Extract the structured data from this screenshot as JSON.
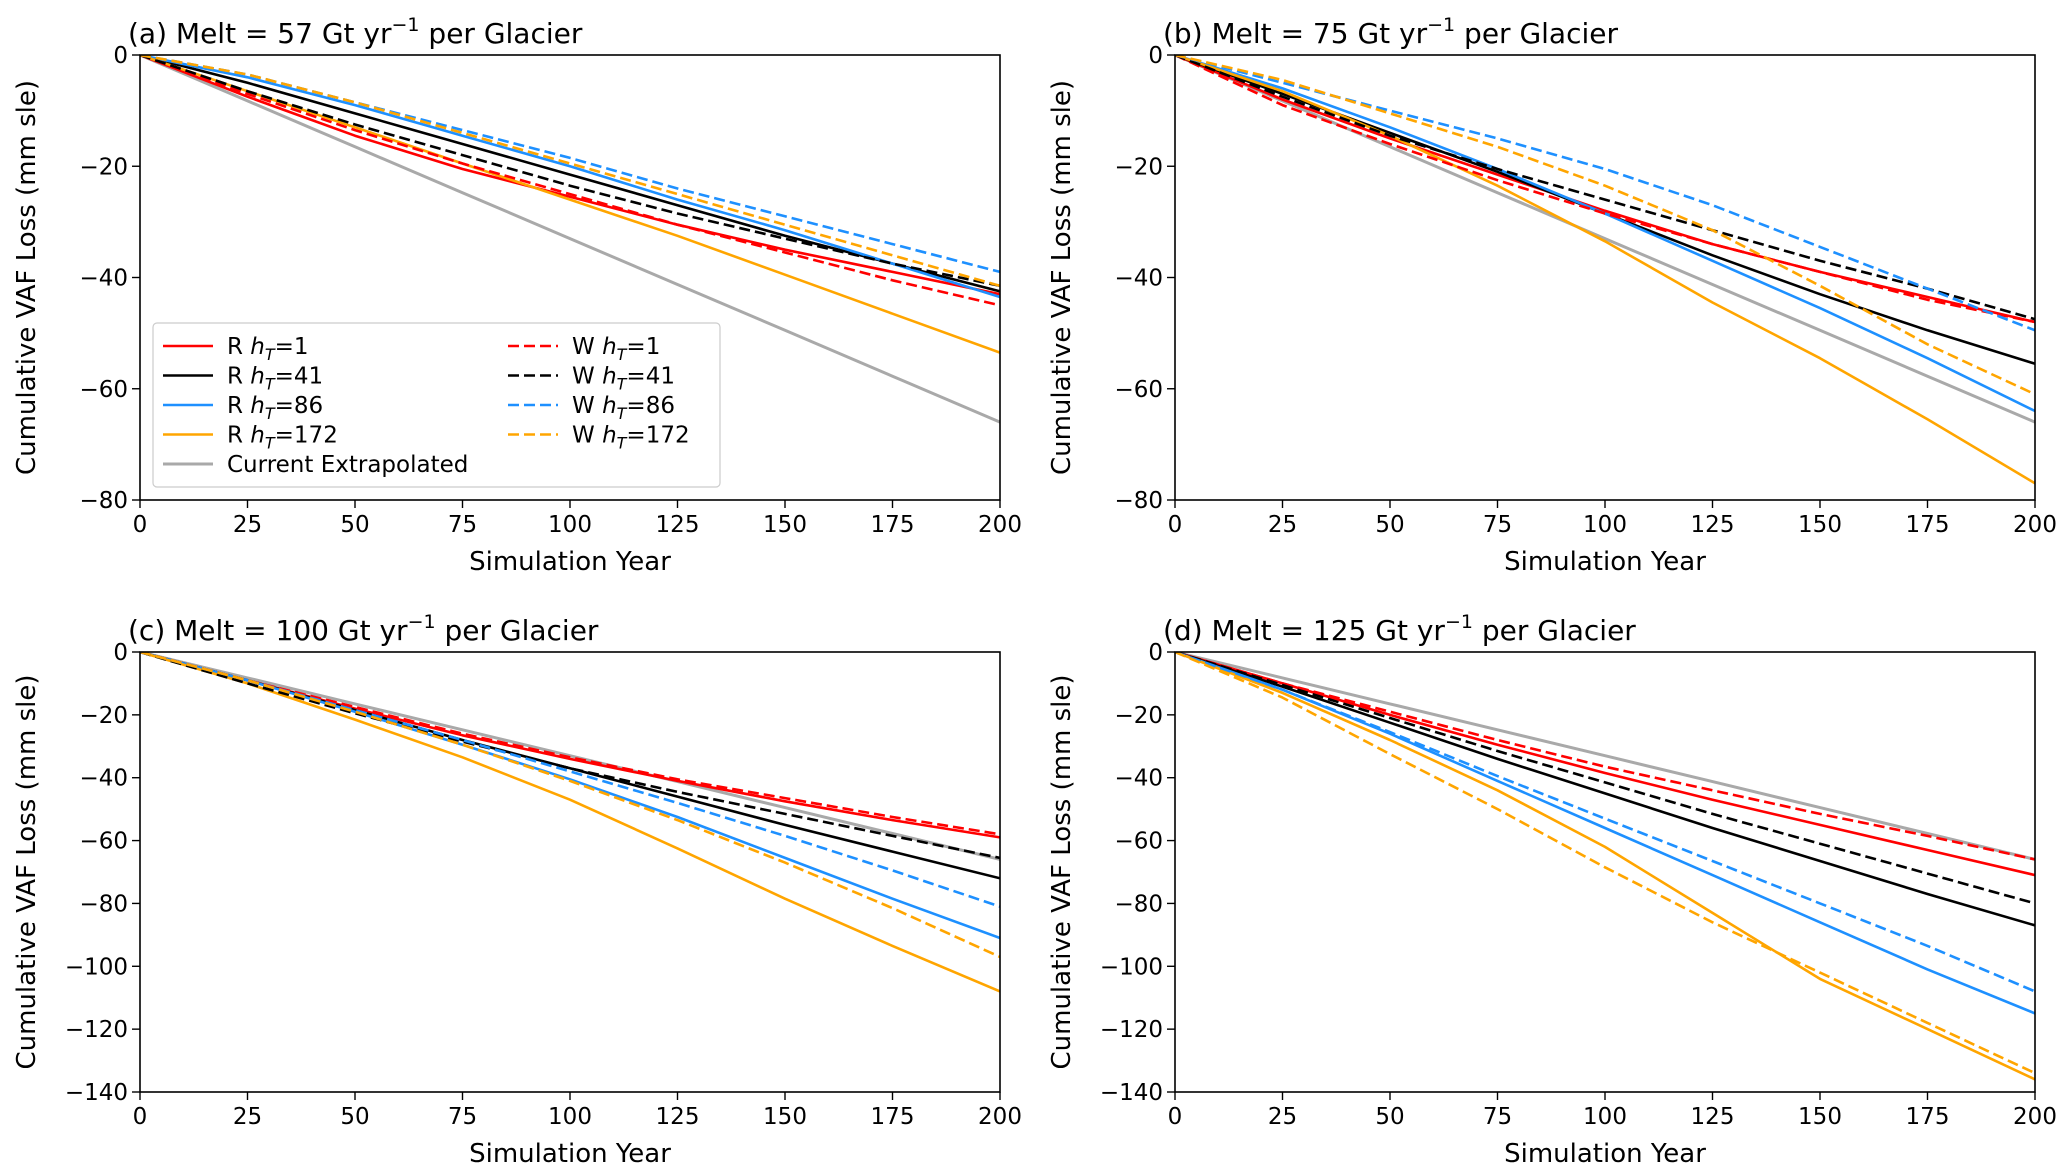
{
  "chart_data": [
    {
      "type": "line",
      "title_prefix": "(a) Melt = 57 Gt yr",
      "title_sup": "−1",
      "title_suffix": " per Glacier",
      "xlabel": "Simulation Year",
      "ylabel": "Cumulative VAF Loss (mm sle)",
      "xlim": [
        0,
        200
      ],
      "ylim": [
        -80,
        0
      ],
      "xticks": [
        0,
        25,
        50,
        75,
        100,
        125,
        150,
        175,
        200
      ],
      "yticks": [
        0,
        -20,
        -40,
        -60,
        -80
      ],
      "x": [
        0,
        25,
        50,
        75,
        100,
        125,
        150,
        175,
        200
      ],
      "legend": true,
      "series": [
        {
          "name": "R h_T=1",
          "color": "#ff0000",
          "dash": "solid",
          "values": [
            0,
            -7.5,
            -14.5,
            -20.5,
            -25.5,
            -30.5,
            -35,
            -39,
            -43
          ]
        },
        {
          "name": "R h_T=41",
          "color": "#000000",
          "dash": "solid",
          "values": [
            0,
            -5,
            -10.5,
            -16,
            -21.5,
            -27,
            -32.5,
            -37.5,
            -42.5
          ]
        },
        {
          "name": "R h_T=86",
          "color": "#1e90ff",
          "dash": "solid",
          "values": [
            0,
            -4,
            -9,
            -14.5,
            -20,
            -26,
            -31.5,
            -37.5,
            -43.5
          ]
        },
        {
          "name": "R h_T=172",
          "color": "#ffa500",
          "dash": "solid",
          "values": [
            0,
            -6.5,
            -13,
            -19.5,
            -26,
            -32.5,
            -39.5,
            -46.5,
            -53.5
          ]
        },
        {
          "name": "W h_T=1",
          "color": "#ff0000",
          "dash": "dashed",
          "values": [
            0,
            -7,
            -13.5,
            -19.5,
            -25,
            -30.5,
            -35.5,
            -40.5,
            -45
          ]
        },
        {
          "name": "W h_T=41",
          "color": "#000000",
          "dash": "dashed",
          "values": [
            0,
            -6.5,
            -12.5,
            -18,
            -23.5,
            -28.5,
            -33,
            -37.5,
            -41.5
          ]
        },
        {
          "name": "W h_T=86",
          "color": "#1e90ff",
          "dash": "dashed",
          "values": [
            0,
            -3.5,
            -8.5,
            -13.5,
            -18.5,
            -24,
            -29,
            -34,
            -39
          ]
        },
        {
          "name": "W h_T=172",
          "color": "#ffa500",
          "dash": "dashed",
          "values": [
            0,
            -3.5,
            -8.5,
            -14,
            -19.5,
            -25,
            -30.5,
            -36,
            -41.5
          ]
        },
        {
          "name": "Current Extrapolated",
          "color": "#a9a9a9",
          "dash": "solid",
          "width": 3,
          "values": [
            0,
            -8.25,
            -16.5,
            -24.75,
            -33,
            -41.25,
            -49.5,
            -57.75,
            -66
          ]
        }
      ]
    },
    {
      "type": "line",
      "title_prefix": "(b) Melt = 75 Gt yr",
      "title_sup": "−1",
      "title_suffix": " per Glacier",
      "xlabel": "Simulation Year",
      "ylabel": "Cumulative VAF Loss (mm sle)",
      "xlim": [
        0,
        200
      ],
      "ylim": [
        -80,
        0
      ],
      "xticks": [
        0,
        25,
        50,
        75,
        100,
        125,
        150,
        175,
        200
      ],
      "yticks": [
        0,
        -20,
        -40,
        -60,
        -80
      ],
      "x": [
        0,
        25,
        50,
        75,
        100,
        125,
        150,
        175,
        200
      ],
      "legend": false,
      "series": [
        {
          "name": "R h_T=1",
          "color": "#ff0000",
          "dash": "solid",
          "values": [
            0,
            -8,
            -15,
            -21.5,
            -28,
            -34,
            -39,
            -43.5,
            -48
          ]
        },
        {
          "name": "R h_T=41",
          "color": "#000000",
          "dash": "solid",
          "values": [
            0,
            -7,
            -14,
            -21,
            -28.5,
            -36,
            -43,
            -49.5,
            -55.5
          ]
        },
        {
          "name": "R h_T=86",
          "color": "#1e90ff",
          "dash": "solid",
          "values": [
            0,
            -6,
            -13,
            -20.5,
            -28.5,
            -37,
            -45.5,
            -54.5,
            -64
          ]
        },
        {
          "name": "R h_T=172",
          "color": "#ffa500",
          "dash": "solid",
          "values": [
            0,
            -6.5,
            -14.5,
            -23.5,
            -33.5,
            -44.5,
            -54.5,
            -65.5,
            -77
          ]
        },
        {
          "name": "W h_T=1",
          "color": "#ff0000",
          "dash": "dashed",
          "values": [
            0,
            -9,
            -16,
            -22.5,
            -28.5,
            -34,
            -39,
            -44,
            -48
          ]
        },
        {
          "name": "W h_T=41",
          "color": "#000000",
          "dash": "dashed",
          "values": [
            0,
            -7.5,
            -14.5,
            -20.5,
            -26,
            -31.5,
            -37,
            -42,
            -47.5
          ]
        },
        {
          "name": "W h_T=86",
          "color": "#1e90ff",
          "dash": "dashed",
          "values": [
            0,
            -5,
            -10,
            -15,
            -20.5,
            -27,
            -34.5,
            -42,
            -49.5
          ]
        },
        {
          "name": "W h_T=172",
          "color": "#ffa500",
          "dash": "dashed",
          "values": [
            0,
            -4.5,
            -10.5,
            -16.5,
            -23.5,
            -31.5,
            -41.5,
            -52,
            -61
          ]
        },
        {
          "name": "Current Extrapolated",
          "color": "#a9a9a9",
          "dash": "solid",
          "width": 3,
          "values": [
            0,
            -8.25,
            -16.5,
            -24.75,
            -33,
            -41.25,
            -49.5,
            -57.75,
            -66
          ]
        }
      ]
    },
    {
      "type": "line",
      "title_prefix": "(c) Melt = 100 Gt yr",
      "title_sup": "−1",
      "title_suffix": " per Glacier",
      "xlabel": "Simulation Year",
      "ylabel": "Cumulative VAF Loss (mm sle)",
      "xlim": [
        0,
        200
      ],
      "ylim": [
        -140,
        0
      ],
      "xticks": [
        0,
        25,
        50,
        75,
        100,
        125,
        150,
        175,
        200
      ],
      "yticks": [
        0,
        -20,
        -40,
        -60,
        -80,
        -100,
        -120,
        -140
      ],
      "x": [
        0,
        25,
        50,
        75,
        100,
        125,
        150,
        175,
        200
      ],
      "legend": false,
      "series": [
        {
          "name": "R h_T=1",
          "color": "#ff0000",
          "dash": "solid",
          "values": [
            0,
            -9,
            -18,
            -26.5,
            -34,
            -41,
            -47.5,
            -53.5,
            -59
          ]
        },
        {
          "name": "R h_T=41",
          "color": "#000000",
          "dash": "solid",
          "values": [
            0,
            -9,
            -18.5,
            -28,
            -37,
            -46,
            -55,
            -63.5,
            -72
          ]
        },
        {
          "name": "R h_T=86",
          "color": "#1e90ff",
          "dash": "solid",
          "values": [
            0,
            -9,
            -19,
            -29.5,
            -40.5,
            -52.5,
            -65.5,
            -78.5,
            -91
          ]
        },
        {
          "name": "R h_T=172",
          "color": "#ffa500",
          "dash": "solid",
          "values": [
            0,
            -10,
            -21.5,
            -33.5,
            -47,
            -62.5,
            -78.5,
            -93.5,
            -108
          ]
        },
        {
          "name": "W h_T=1",
          "color": "#ff0000",
          "dash": "dashed",
          "values": [
            0,
            -9,
            -17.5,
            -26,
            -33.5,
            -40.5,
            -46.5,
            -52.5,
            -58
          ]
        },
        {
          "name": "W h_T=41",
          "color": "#000000",
          "dash": "dashed",
          "values": [
            0,
            -10,
            -19.5,
            -28.5,
            -37,
            -44.5,
            -51.5,
            -58.5,
            -65.5
          ]
        },
        {
          "name": "W h_T=86",
          "color": "#1e90ff",
          "dash": "dashed",
          "values": [
            0,
            -9,
            -18.5,
            -28,
            -38,
            -48,
            -58.5,
            -69.5,
            -81
          ]
        },
        {
          "name": "W h_T=172",
          "color": "#ffa500",
          "dash": "dashed",
          "values": [
            0,
            -9,
            -19,
            -29.5,
            -41,
            -53.5,
            -67,
            -81.5,
            -97
          ]
        },
        {
          "name": "Current Extrapolated",
          "color": "#a9a9a9",
          "dash": "solid",
          "width": 3,
          "values": [
            0,
            -8.25,
            -16.5,
            -24.75,
            -33,
            -41.25,
            -49.5,
            -57.75,
            -66
          ]
        }
      ]
    },
    {
      "type": "line",
      "title_prefix": "(d) Melt = 125 Gt yr",
      "title_sup": "−1",
      "title_suffix": " per Glacier",
      "xlabel": "Simulation Year",
      "ylabel": "Cumulative VAF Loss (mm sle)",
      "xlim": [
        0,
        200
      ],
      "ylim": [
        -140,
        0
      ],
      "xticks": [
        0,
        25,
        50,
        75,
        100,
        125,
        150,
        175,
        200
      ],
      "yticks": [
        0,
        -20,
        -40,
        -60,
        -80,
        -100,
        -120,
        -140
      ],
      "x": [
        0,
        25,
        50,
        75,
        100,
        125,
        150,
        175,
        200
      ],
      "legend": false,
      "series": [
        {
          "name": "R h_T=1",
          "color": "#ff0000",
          "dash": "solid",
          "values": [
            0,
            -10,
            -20,
            -29.5,
            -38.5,
            -47,
            -55,
            -63,
            -71
          ]
        },
        {
          "name": "R h_T=41",
          "color": "#000000",
          "dash": "solid",
          "values": [
            0,
            -11,
            -22.5,
            -34,
            -45,
            -56,
            -66.5,
            -77,
            -87
          ]
        },
        {
          "name": "R h_T=86",
          "color": "#1e90ff",
          "dash": "solid",
          "values": [
            0,
            -12,
            -26,
            -41,
            -56,
            -71,
            -86,
            -101,
            -115
          ]
        },
        {
          "name": "R h_T=172",
          "color": "#ffa500",
          "dash": "solid",
          "values": [
            0,
            -13,
            -28,
            -44,
            -62,
            -83,
            -104,
            -120,
            -136
          ]
        },
        {
          "name": "W h_T=1",
          "color": "#ff0000",
          "dash": "dashed",
          "values": [
            0,
            -10,
            -19,
            -28,
            -36.5,
            -44,
            -51.5,
            -58.5,
            -66
          ]
        },
        {
          "name": "W h_T=41",
          "color": "#000000",
          "dash": "dashed",
          "values": [
            0,
            -10.5,
            -21,
            -31.5,
            -41.5,
            -51.5,
            -61,
            -70.5,
            -80
          ]
        },
        {
          "name": "W h_T=86",
          "color": "#1e90ff",
          "dash": "dashed",
          "values": [
            0,
            -12,
            -25.5,
            -39.5,
            -53,
            -66.5,
            -80,
            -93.5,
            -108
          ]
        },
        {
          "name": "W h_T=172",
          "color": "#ffa500",
          "dash": "dashed",
          "values": [
            0,
            -14.5,
            -32.5,
            -50,
            -68.5,
            -86,
            -102,
            -118,
            -134
          ]
        },
        {
          "name": "Current Extrapolated",
          "color": "#a9a9a9",
          "dash": "solid",
          "width": 3,
          "values": [
            0,
            -8.25,
            -16.5,
            -24.75,
            -33,
            -41.25,
            -49.5,
            -57.75,
            -66
          ]
        }
      ]
    }
  ],
  "legend": {
    "entries": [
      {
        "prefix": "R ",
        "var": "h",
        "sub": "T",
        "suffix": "=1",
        "color": "#ff0000",
        "dash": "solid"
      },
      {
        "prefix": "R ",
        "var": "h",
        "sub": "T",
        "suffix": "=41",
        "color": "#000000",
        "dash": "solid"
      },
      {
        "prefix": "R ",
        "var": "h",
        "sub": "T",
        "suffix": "=86",
        "color": "#1e90ff",
        "dash": "solid"
      },
      {
        "prefix": "R ",
        "var": "h",
        "sub": "T",
        "suffix": "=172",
        "color": "#ffa500",
        "dash": "solid"
      },
      {
        "prefix": "Current Extrapolated",
        "var": "",
        "sub": "",
        "suffix": "",
        "color": "#a9a9a9",
        "dash": "solid",
        "width": 3
      },
      {
        "prefix": "W ",
        "var": "h",
        "sub": "T",
        "suffix": "=1",
        "color": "#ff0000",
        "dash": "dashed"
      },
      {
        "prefix": "W ",
        "var": "h",
        "sub": "T",
        "suffix": "=41",
        "color": "#000000",
        "dash": "dashed"
      },
      {
        "prefix": "W ",
        "var": "h",
        "sub": "T",
        "suffix": "=86",
        "color": "#1e90ff",
        "dash": "dashed"
      },
      {
        "prefix": "W ",
        "var": "h",
        "sub": "T",
        "suffix": "=172",
        "color": "#ffa500",
        "dash": "dashed"
      }
    ]
  }
}
